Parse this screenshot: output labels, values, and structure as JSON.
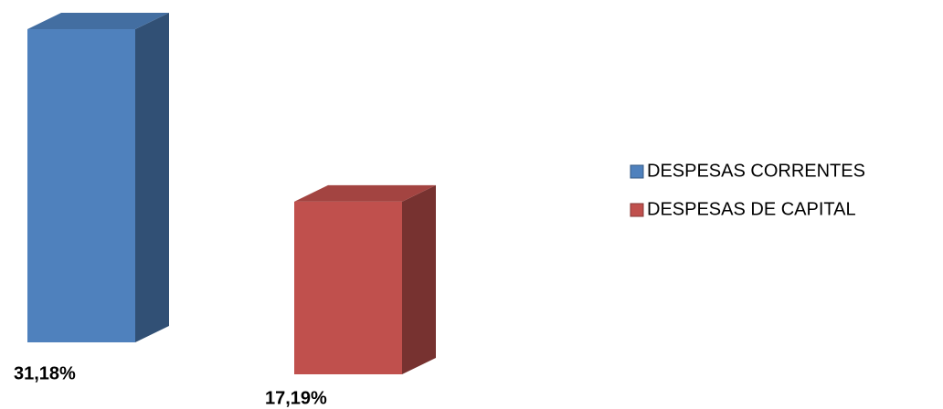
{
  "chart_data": {
    "type": "bar",
    "categories": [
      null
    ],
    "series": [
      {
        "name": "DESPESAS CORRENTES",
        "color": "#4f81bd",
        "values": [
          31.18
        ],
        "value_labels": [
          "31,18%"
        ]
      },
      {
        "name": "DESPESAS DE CAPITAL",
        "color": "#c0504d",
        "values": [
          17.19
        ],
        "value_labels": [
          "17,19%"
        ]
      }
    ]
  }
}
